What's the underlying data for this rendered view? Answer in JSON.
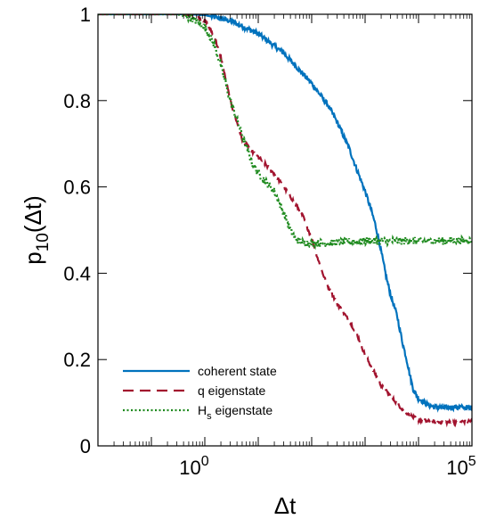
{
  "chart_data": {
    "type": "line",
    "xscale": "log",
    "xlim": [
      0.01,
      100000
    ],
    "ylim": [
      0,
      1
    ],
    "ylabel": {
      "main": "p",
      "sub": "10",
      "arg": "(Δt)"
    },
    "xlabel": "Δt",
    "xtick_labels": [
      {
        "x": 1,
        "base": "10",
        "exp": "0"
      },
      {
        "x": 100000,
        "base": "10",
        "exp": "5"
      }
    ],
    "ytick_labels": [
      {
        "y": 0,
        "label": "0"
      },
      {
        "y": 0.2,
        "label": "0.2"
      },
      {
        "y": 0.4,
        "label": "0.4"
      },
      {
        "y": 0.6,
        "label": "0.6"
      },
      {
        "y": 0.8,
        "label": "0.8"
      },
      {
        "y": 1,
        "label": "1"
      }
    ],
    "grid": false,
    "legend_position": "bottom-left",
    "series": [
      {
        "name": "coherent state",
        "color": "#0072bd",
        "style": "solid",
        "x": [
          0.01,
          0.1,
          0.5,
          1,
          3,
          10,
          30,
          100,
          200,
          300,
          500,
          700,
          1000,
          1200,
          1500,
          1800,
          2000,
          2500,
          3000,
          4000,
          5000,
          6000,
          7000,
          8000,
          10000,
          15000,
          20000,
          30000,
          50000,
          100000
        ],
        "y": [
          1,
          1,
          1,
          0.998,
          0.985,
          0.955,
          0.91,
          0.84,
          0.79,
          0.75,
          0.69,
          0.64,
          0.59,
          0.56,
          0.52,
          0.48,
          0.45,
          0.39,
          0.35,
          0.3,
          0.24,
          0.2,
          0.16,
          0.13,
          0.11,
          0.095,
          0.09,
          0.088,
          0.09,
          0.088
        ]
      },
      {
        "name": "q eigenstate",
        "color": "#a2142f",
        "style": "dashed",
        "x": [
          0.01,
          0.1,
          0.3,
          0.6,
          1,
          1.5,
          2,
          3,
          5,
          8,
          12,
          20,
          30,
          50,
          70,
          100,
          150,
          200,
          300,
          500,
          700,
          1000,
          1500,
          2000,
          3000,
          5000,
          7000,
          10000,
          20000,
          50000,
          100000
        ],
        "y": [
          1,
          1,
          1,
          0.997,
          0.985,
          0.95,
          0.9,
          0.8,
          0.71,
          0.68,
          0.66,
          0.63,
          0.6,
          0.56,
          0.53,
          0.48,
          0.41,
          0.37,
          0.33,
          0.29,
          0.26,
          0.21,
          0.17,
          0.14,
          0.115,
          0.085,
          0.07,
          0.06,
          0.055,
          0.055,
          0.058
        ]
      },
      {
        "name": "H_s eigenstate",
        "label_main": "H",
        "label_sub": "s",
        "label_rest": " eigenstate",
        "color": "#1e8a1e",
        "style": "dotted",
        "x": [
          0.01,
          0.1,
          0.3,
          0.6,
          1,
          1.5,
          2,
          3,
          5,
          8,
          12,
          20,
          30,
          40,
          50,
          70,
          100,
          200,
          1000,
          10000,
          100000
        ],
        "y": [
          1,
          1,
          1,
          0.99,
          0.97,
          0.93,
          0.88,
          0.8,
          0.72,
          0.65,
          0.62,
          0.59,
          0.54,
          0.5,
          0.48,
          0.47,
          0.47,
          0.47,
          0.475,
          0.475,
          0.475
        ]
      }
    ]
  }
}
